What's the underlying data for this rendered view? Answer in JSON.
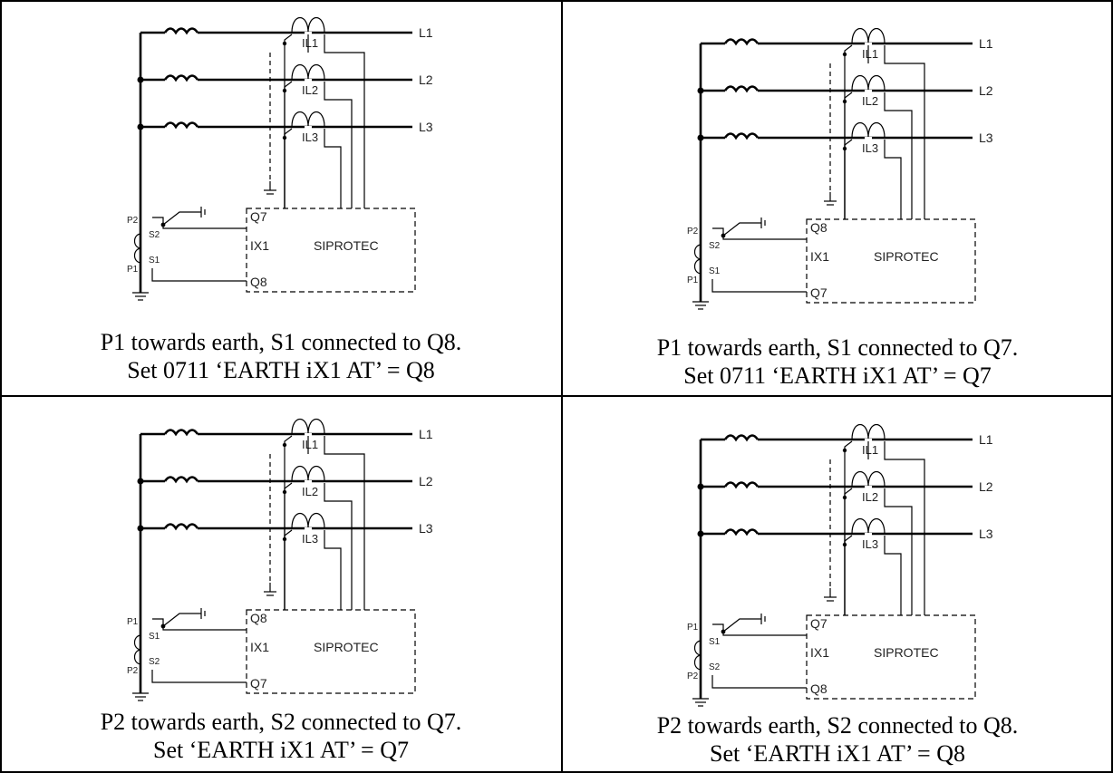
{
  "panels": [
    {
      "top_terminal": "Q7",
      "bottom_terminal": "Q8",
      "upper_ct_mark": "P2",
      "lower_ct_mark": "P1",
      "upper_s_mark": "S2",
      "lower_s_mark": "S1",
      "caption_line1": "P1 towards earth, S1 connected to Q8.",
      "caption_line2": "Set 0711 ‘EARTH iX1 AT’ = Q8"
    },
    {
      "top_terminal": "Q8",
      "bottom_terminal": "Q7",
      "upper_ct_mark": "P2",
      "lower_ct_mark": "P1",
      "upper_s_mark": "S2",
      "lower_s_mark": "S1",
      "caption_line1": "P1 towards earth, S1 connected to Q7.",
      "caption_line2": "Set 0711 ‘EARTH iX1 AT’ = Q7"
    },
    {
      "top_terminal": "Q8",
      "bottom_terminal": "Q7",
      "upper_ct_mark": "P1",
      "lower_ct_mark": "P2",
      "upper_s_mark": "S1",
      "lower_s_mark": "S2",
      "caption_line1": "P2 towards earth, S2 connected to Q7.",
      "caption_line2": "Set ‘EARTH iX1 AT’ = Q7"
    },
    {
      "top_terminal": "Q7",
      "bottom_terminal": "Q8",
      "upper_ct_mark": "P1",
      "lower_ct_mark": "P2",
      "upper_s_mark": "S1",
      "lower_s_mark": "S2",
      "caption_line1": "P2 towards earth, S2 connected to Q8.",
      "caption_line2": "Set ‘EARTH iX1 AT’ = Q8"
    }
  ],
  "phases": [
    "L1",
    "L2",
    "L3"
  ],
  "phase_cts": [
    "IL1",
    "IL2",
    "IL3"
  ],
  "device_input": "IX1",
  "device_name": "SIPROTEC"
}
